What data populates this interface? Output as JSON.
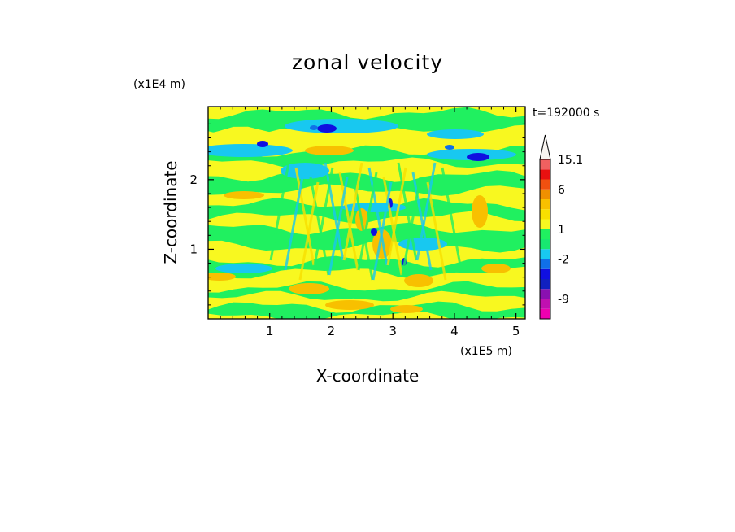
{
  "chart_data": {
    "type": "heatmap",
    "title": "zonal velocity",
    "xlabel": "X-coordinate",
    "ylabel": "Z-coordinate",
    "x_unit": "(x1E5 m)",
    "y_unit": "(x1E4 m)",
    "time_label": "t=192000 s",
    "xlim": [
      0,
      5.15
    ],
    "ylim": [
      0,
      3.05
    ],
    "x_ticks": [
      "1",
      "2",
      "3",
      "4",
      "5"
    ],
    "x_tick_values": [
      1,
      2,
      3,
      4,
      5
    ],
    "y_ticks": [
      "1",
      "2"
    ],
    "y_tick_values": [
      1,
      2
    ],
    "colorbar": {
      "levels": [
        -15,
        -12,
        -9,
        -6,
        -4,
        -3,
        -2,
        -1,
        0,
        1,
        2,
        3,
        4,
        6,
        9,
        12,
        15.1
      ],
      "colors": [
        "#ee00b0",
        "#c010b0",
        "#8a10b0",
        "#1020c0",
        "#1010e0",
        "#1070e8",
        "#18c8f0",
        "#18e870",
        "#20f060",
        "#f8f820",
        "#f8e000",
        "#f8c000",
        "#f09000",
        "#f05010",
        "#e81010",
        "#f06060",
        "#f8a8a8"
      ],
      "extend_top_color": "#f8f4f0",
      "labels": [
        "15.1",
        "6",
        "1",
        "-2",
        "-9"
      ],
      "label_values": [
        15.1,
        6,
        1,
        -2,
        -9
      ]
    }
  }
}
